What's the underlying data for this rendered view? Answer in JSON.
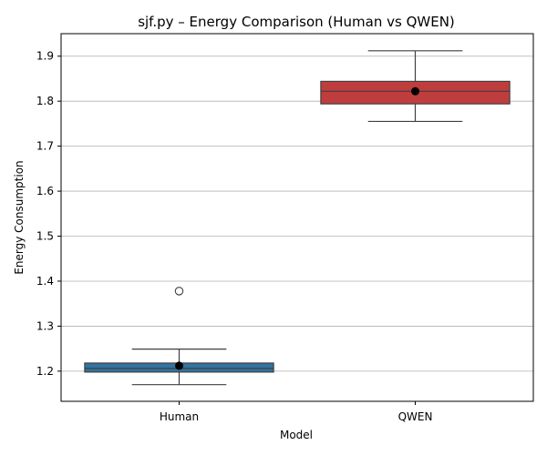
{
  "chart_data": {
    "type": "box",
    "title": "sjf.py – Energy Comparison (Human vs QWEN)",
    "xlabel": "Model",
    "ylabel": "Energy Consumption",
    "ylim": [
      1.133,
      1.95
    ],
    "yticks": [
      1.2,
      1.3,
      1.4,
      1.5,
      1.6,
      1.7,
      1.8,
      1.9
    ],
    "ytick_labels": [
      "1.2",
      "1.3",
      "1.4",
      "1.5",
      "1.6",
      "1.7",
      "1.8",
      "1.9"
    ],
    "grid": "horizontal",
    "categories": [
      "Human",
      "QWEN"
    ],
    "series": [
      {
        "category": "Human",
        "color": "#3274a1",
        "whisker_low": 1.17,
        "q1": 1.198,
        "median": 1.206,
        "q3": 1.218,
        "whisker_high": 1.249,
        "mean": 1.212,
        "outliers": [
          1.378
        ]
      },
      {
        "category": "QWEN",
        "color": "#c03d3e",
        "whisker_low": 1.755,
        "q1": 1.794,
        "median": 1.822,
        "q3": 1.844,
        "whisker_high": 1.912,
        "mean": 1.822,
        "outliers": []
      }
    ]
  }
}
